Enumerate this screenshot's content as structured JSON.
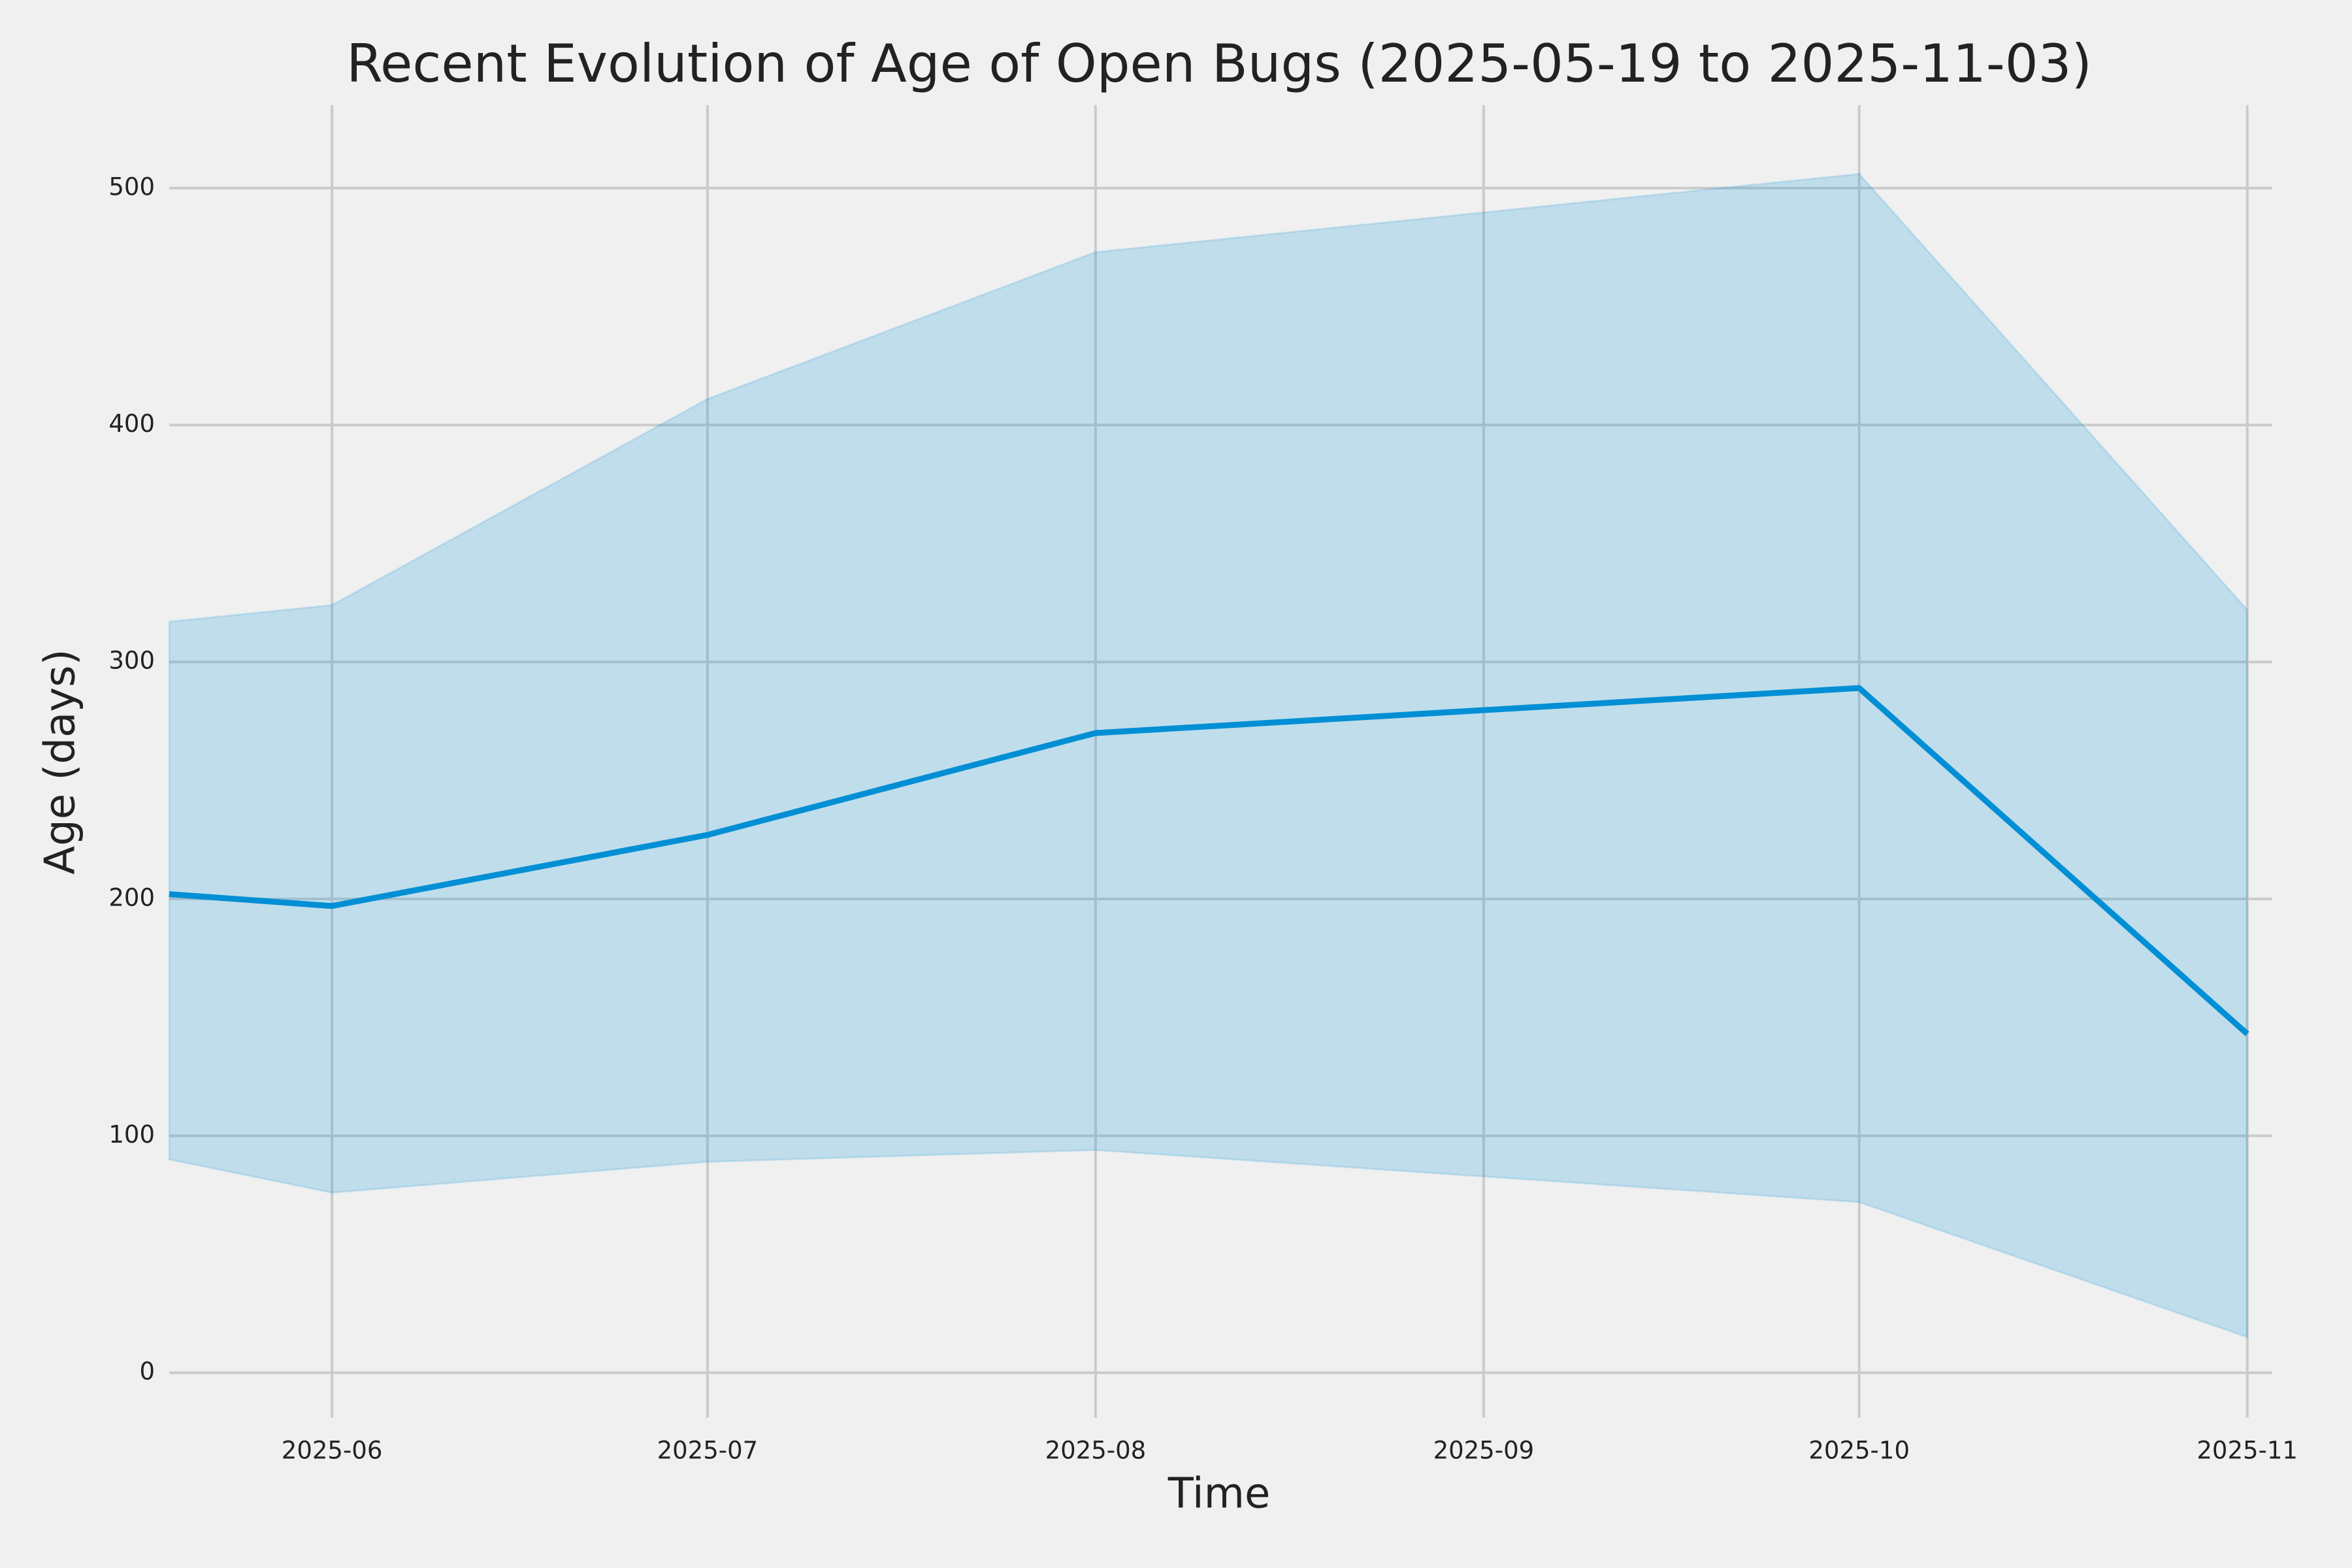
{
  "chart_data": {
    "type": "line",
    "title": "Recent Evolution of Age of Open Bugs (2025-05-19 to 2025-11-03)",
    "x_label": "Time",
    "y_label": "Age (days)",
    "x": [
      "2025-05-19",
      "2025-06",
      "2025-07",
      "2025-08",
      "2025-10",
      "2025-11"
    ],
    "values": [
      202,
      197,
      227,
      270,
      289,
      143
    ],
    "upper": [
      317,
      324,
      411,
      473,
      506,
      322
    ],
    "lower": [
      90,
      76,
      89,
      94,
      72,
      15
    ],
    "color": "#008fd5",
    "xlim": [
      "2025-05-19",
      "2025-11-03"
    ],
    "xticks": [
      "2025-06",
      "2025-07",
      "2025-08",
      "2025-09",
      "2025-10",
      "2025-11"
    ],
    "ylim": [
      -19,
      535
    ],
    "yticks": [
      0,
      100,
      200,
      300,
      400,
      500
    ],
    "grid": true
  }
}
